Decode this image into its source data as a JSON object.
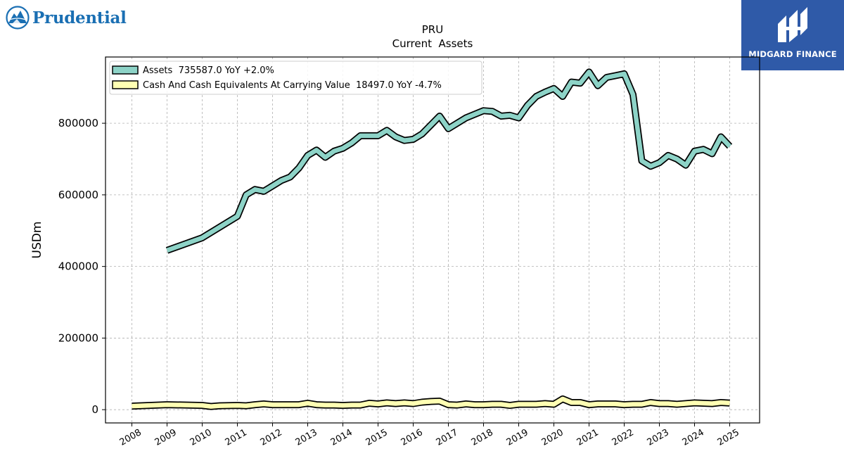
{
  "logos": {
    "left": "Prudential",
    "right": "MIDGARD FINANCE"
  },
  "colors": {
    "assets": "#8dd3c7",
    "cash": "#ffffb3",
    "outline": "#000000",
    "brand_blue": "#1a6fb3",
    "badge_blue": "#2f5aa8"
  },
  "chart_data": {
    "type": "line",
    "title": "PRU",
    "subtitle": "Current  Assets",
    "ylabel": "USDm",
    "xlabel": "",
    "grid": true,
    "legend_position": "top-left",
    "xlim": [
      2007.25,
      2025.85
    ],
    "ylim": [
      -37000,
      985000
    ],
    "x_ticks": [
      2008,
      2009,
      2010,
      2011,
      2012,
      2013,
      2014,
      2015,
      2016,
      2017,
      2018,
      2019,
      2020,
      2021,
      2022,
      2023,
      2024,
      2025
    ],
    "x_tick_labels": [
      "2008",
      "2009",
      "2010",
      "2011",
      "2012",
      "2013",
      "2014",
      "2015",
      "2016",
      "2017",
      "2018",
      "2019",
      "2020",
      "2021",
      "2022",
      "2023",
      "2024",
      "2025"
    ],
    "y_ticks": [
      0,
      200000,
      400000,
      600000,
      800000
    ],
    "y_tick_labels": [
      "0",
      "200000",
      "400000",
      "600000",
      "800000"
    ],
    "series": [
      {
        "name": "Assets  735587.0 YoY +2.0%",
        "color": "#8dd3c7",
        "x": [
          2009.0,
          2010.0,
          2011.0,
          2011.25,
          2011.5,
          2011.75,
          2012.0,
          2012.25,
          2012.5,
          2012.75,
          2013.0,
          2013.25,
          2013.5,
          2013.75,
          2014.0,
          2014.25,
          2014.5,
          2014.75,
          2015.0,
          2015.25,
          2015.5,
          2015.75,
          2016.0,
          2016.25,
          2016.5,
          2016.75,
          2017.0,
          2017.25,
          2017.5,
          2017.75,
          2018.0,
          2018.25,
          2018.5,
          2018.75,
          2019.0,
          2019.25,
          2019.5,
          2019.75,
          2020.0,
          2020.25,
          2020.5,
          2020.75,
          2021.0,
          2021.25,
          2021.5,
          2021.75,
          2022.0,
          2022.25,
          2022.5,
          2022.75,
          2023.0,
          2023.25,
          2023.5,
          2023.75,
          2024.0,
          2024.25,
          2024.5,
          2024.75,
          2025.0
        ],
        "values": [
          445000,
          480000,
          540000,
          600000,
          615000,
          610000,
          625000,
          640000,
          650000,
          675000,
          710000,
          725000,
          705000,
          722000,
          730000,
          745000,
          765000,
          765000,
          765000,
          780000,
          762000,
          752000,
          755000,
          770000,
          795000,
          820000,
          785000,
          800000,
          815000,
          825000,
          835000,
          833000,
          820000,
          822000,
          815000,
          850000,
          875000,
          887000,
          897000,
          875000,
          915000,
          912000,
          943000,
          905000,
          928000,
          933000,
          938000,
          880000,
          695000,
          680000,
          690000,
          710000,
          700000,
          683000,
          722000,
          727000,
          715000,
          762000,
          735587
        ]
      },
      {
        "name": "Cash And Cash Equivalents At Carrying Value  18497.0 YoY -4.7%",
        "color": "#ffffb3",
        "x": [
          2008.0,
          2009.0,
          2010.0,
          2010.25,
          2010.5,
          2011.0,
          2011.25,
          2011.5,
          2011.75,
          2012.0,
          2012.5,
          2012.75,
          2013.0,
          2013.25,
          2013.5,
          2013.75,
          2014.0,
          2014.25,
          2014.5,
          2014.75,
          2015.0,
          2015.25,
          2015.5,
          2015.75,
          2016.0,
          2016.25,
          2016.5,
          2016.75,
          2017.0,
          2017.25,
          2017.5,
          2017.75,
          2018.0,
          2018.25,
          2018.5,
          2018.75,
          2019.0,
          2019.25,
          2019.5,
          2019.75,
          2020.0,
          2020.25,
          2020.5,
          2020.75,
          2021.0,
          2021.25,
          2021.5,
          2021.75,
          2022.0,
          2022.25,
          2022.5,
          2022.75,
          2023.0,
          2023.25,
          2023.5,
          2023.75,
          2024.0,
          2024.25,
          2024.5,
          2024.75,
          2025.0
        ],
        "values": [
          10000,
          14000,
          12000,
          9000,
          11000,
          12000,
          11000,
          14000,
          16000,
          14000,
          14000,
          14000,
          18000,
          14000,
          13000,
          13000,
          12000,
          13000,
          13000,
          18000,
          16000,
          19000,
          17000,
          19000,
          17000,
          21000,
          23000,
          24000,
          14000,
          13000,
          16000,
          14000,
          14000,
          15000,
          15000,
          12000,
          15000,
          15000,
          15000,
          17000,
          15000,
          30000,
          20000,
          20000,
          14000,
          16000,
          16000,
          16000,
          14000,
          15000,
          15000,
          20000,
          17000,
          17000,
          15000,
          17000,
          19000,
          18000,
          17000,
          20000,
          18497
        ]
      }
    ]
  }
}
